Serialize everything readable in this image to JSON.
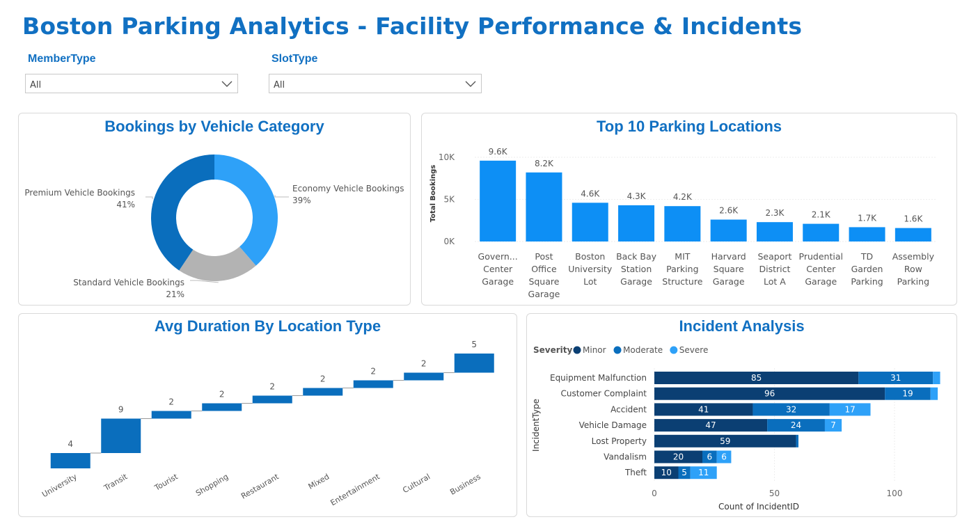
{
  "header": {
    "title": "Boston Parking Analytics - Facility Performance & Incidents"
  },
  "slicers": [
    {
      "label": "MemberType",
      "value": "All"
    },
    {
      "label": "SlotType",
      "value": "All"
    }
  ],
  "chart_data": [
    {
      "id": "donut",
      "type": "pie",
      "title": "Bookings by Vehicle Category",
      "slices": [
        {
          "label": "Economy Vehicle Bookings",
          "pct_label": "39%",
          "value": 39,
          "color": "#2ea1f8"
        },
        {
          "label": "Standard Vehicle Bookings",
          "pct_label": "21%",
          "value": 21,
          "color": "#b3b3b3"
        },
        {
          "label": "Premium Vehicle Bookings",
          "pct_label": "41%",
          "value": 41,
          "color": "#0a6ebd"
        }
      ]
    },
    {
      "id": "top10",
      "type": "bar",
      "title": "Top 10 Parking Locations",
      "ylabel": "Total Bookings",
      "ylim": [
        0,
        10000
      ],
      "yticks": [
        {
          "value": 0,
          "label": "0K"
        },
        {
          "value": 5000,
          "label": "5K"
        },
        {
          "value": 10000,
          "label": "10K"
        }
      ],
      "categories": [
        [
          "Govern...",
          "Center",
          "Garage"
        ],
        [
          "Post",
          "Office",
          "Square",
          "Garage"
        ],
        [
          "Boston",
          "University",
          "Lot"
        ],
        [
          "Back Bay",
          "Station",
          "Garage"
        ],
        [
          "MIT",
          "Parking",
          "Structure"
        ],
        [
          "Harvard",
          "Square",
          "Garage"
        ],
        [
          "Seaport",
          "District",
          "Lot A"
        ],
        [
          "Prudential",
          "Center",
          "Garage"
        ],
        [
          "TD",
          "Garden",
          "Parking"
        ],
        [
          "Assembly",
          "Row",
          "Parking"
        ]
      ],
      "values": [
        9600,
        8200,
        4600,
        4300,
        4200,
        2600,
        2300,
        2100,
        1700,
        1600
      ],
      "data_labels": [
        "9.6K",
        "8.2K",
        "4.6K",
        "4.3K",
        "4.2K",
        "2.6K",
        "2.3K",
        "2.1K",
        "1.7K",
        "1.6K"
      ],
      "color": "#0d8ff5"
    },
    {
      "id": "waterfall",
      "type": "bar",
      "title": "Avg Duration By Location Type",
      "categories": [
        "University",
        "Transit",
        "Tourist",
        "Shopping",
        "Restaurant",
        "Mixed",
        "Entertainment",
        "Cultural",
        "Business"
      ],
      "values": [
        4,
        9,
        2,
        2,
        2,
        2,
        2,
        2,
        5
      ],
      "data_labels": [
        "4",
        "9",
        "2",
        "2",
        "2",
        "2",
        "2",
        "2",
        "5"
      ],
      "color": "#0a6ebd"
    },
    {
      "id": "incidents",
      "type": "bar",
      "title": "Incident Analysis",
      "legend_title": "Severity",
      "xlabel": "Count of IncidentID",
      "ylabel": "IncidentType",
      "xlim": [
        0,
        120
      ],
      "xticks": [
        {
          "value": 0,
          "label": "0"
        },
        {
          "value": 50,
          "label": "50"
        },
        {
          "value": 100,
          "label": "100"
        }
      ],
      "categories": [
        "Equipment Malfunction",
        "Customer Complaint",
        "Accident",
        "Vehicle Damage",
        "Lost Property",
        "Vandalism",
        "Theft"
      ],
      "series": [
        {
          "name": "Minor",
          "color": "#0b3f73",
          "values": [
            85,
            96,
            41,
            47,
            59,
            20,
            10
          ],
          "labels": [
            "85",
            "96",
            "41",
            "47",
            "59",
            "20",
            "10"
          ]
        },
        {
          "name": "Moderate",
          "color": "#0a6ebd",
          "values": [
            31,
            19,
            32,
            24,
            1,
            6,
            5
          ],
          "labels": [
            "31",
            "19",
            "32",
            "24",
            "",
            "6",
            "5"
          ]
        },
        {
          "name": "Severe",
          "color": "#2ea1f8",
          "values": [
            3,
            3,
            17,
            7,
            0,
            6,
            11
          ],
          "labels": [
            "",
            "",
            "17",
            "7",
            "",
            "6",
            "11"
          ]
        }
      ]
    }
  ]
}
